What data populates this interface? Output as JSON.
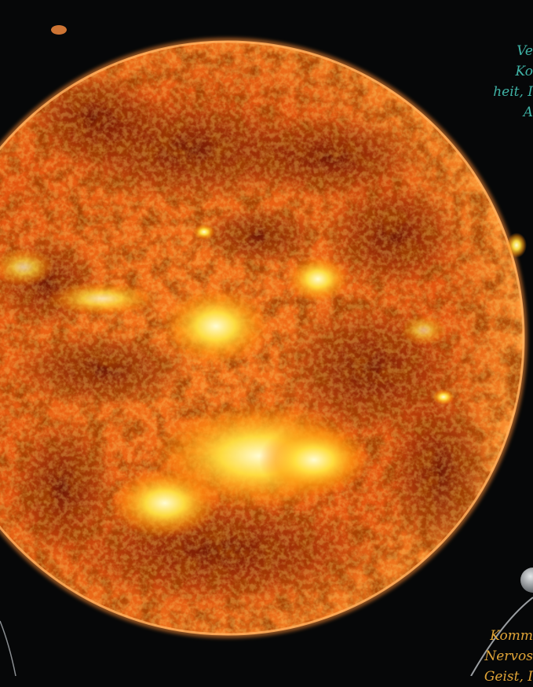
{
  "caption_top": {
    "lines": [
      "Ve",
      "Ko",
      "heit, I",
      "A"
    ],
    "color": "#3fb3a6"
  },
  "caption_bottom": {
    "lines": [
      "Komm",
      "Nervos",
      "Geist, I"
    ],
    "color": "#e0a437"
  },
  "sun": {
    "limb_color": "#f08a2a",
    "bright_color": "#ffe040",
    "shadow_color": "#7a1200"
  },
  "moon": {
    "color": "#b8bcc0"
  },
  "background_color": "#060708"
}
